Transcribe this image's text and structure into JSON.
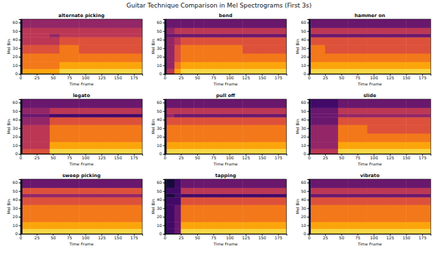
{
  "title": "Guitar Technique Comparison in Mel Spectrograms (First 3s)",
  "chart_data": [
    {
      "type": "heatmap",
      "title": "alternate picking",
      "x_label": "Time Frame",
      "y_label": "Mel Bin",
      "color": "inferno",
      "xlim": [
        0,
        188
      ],
      "ylim": [
        0,
        64
      ],
      "xticks": [
        0,
        25,
        50,
        75,
        100,
        125,
        150,
        175
      ],
      "yticks": [
        0,
        10,
        20,
        30,
        40,
        50,
        60
      ],
      "x_bins": [
        0,
        3,
        15,
        25,
        45,
        60,
        90,
        120,
        150,
        188
      ],
      "y_bins": [
        0,
        6,
        14,
        24,
        34,
        43,
        47,
        54,
        64
      ],
      "color_range": [
        0,
        10
      ],
      "cells": [
        [
          1,
          8,
          8,
          8,
          8,
          9,
          9,
          9,
          9
        ],
        [
          1,
          7,
          7,
          7,
          7,
          8,
          8,
          8,
          8
        ],
        [
          1,
          7,
          7,
          7,
          7,
          7,
          7,
          7,
          7
        ],
        [
          1,
          6,
          6,
          6,
          6,
          7,
          6,
          6,
          6
        ],
        [
          1,
          5,
          5,
          5,
          5,
          6,
          6,
          6,
          6
        ],
        [
          1,
          5,
          5,
          5,
          4,
          5,
          5,
          5,
          5
        ],
        [
          1,
          5,
          5,
          5,
          5,
          5,
          5,
          5,
          5
        ],
        [
          1,
          4,
          4,
          4,
          4,
          4,
          4,
          4,
          4
        ]
      ]
    },
    {
      "type": "heatmap",
      "title": "bend",
      "x_label": "Time Frame",
      "y_label": "Mel Bin",
      "color": "inferno",
      "xlim": [
        0,
        188
      ],
      "ylim": [
        0,
        64
      ],
      "xticks": [
        0,
        25,
        50,
        75,
        100,
        125,
        150,
        175
      ],
      "yticks": [
        0,
        10,
        20,
        30,
        40,
        50,
        60
      ],
      "x_bins": [
        0,
        3,
        15,
        25,
        45,
        60,
        90,
        120,
        150,
        188
      ],
      "y_bins": [
        0,
        6,
        14,
        24,
        34,
        43,
        47,
        54,
        64
      ],
      "color_range": [
        0,
        10
      ],
      "cells": [
        [
          1,
          5,
          8,
          9,
          9,
          9,
          9,
          9,
          9
        ],
        [
          1,
          4,
          7,
          8,
          8,
          8,
          8,
          8,
          8
        ],
        [
          1,
          4,
          6,
          7,
          7,
          7,
          7,
          7,
          7
        ],
        [
          1,
          4,
          6,
          7,
          7,
          7,
          7,
          6,
          6
        ],
        [
          1,
          4,
          5,
          6,
          6,
          6,
          6,
          6,
          6
        ],
        [
          1,
          3,
          3,
          3,
          3,
          3,
          3,
          3,
          3
        ],
        [
          1,
          4,
          5,
          5,
          5,
          5,
          5,
          5,
          5
        ],
        [
          1,
          3,
          3,
          3,
          3,
          3,
          3,
          3,
          3
        ]
      ]
    },
    {
      "type": "heatmap",
      "title": "hammer on",
      "x_label": "Time Frame",
      "y_label": "Mel Bin",
      "color": "inferno",
      "xlim": [
        0,
        188
      ],
      "ylim": [
        0,
        64
      ],
      "xticks": [
        0,
        25,
        50,
        75,
        100,
        125,
        150,
        175
      ],
      "yticks": [
        0,
        10,
        20,
        30,
        40,
        50,
        60
      ],
      "x_bins": [
        0,
        3,
        15,
        25,
        45,
        60,
        90,
        120,
        150,
        188
      ],
      "y_bins": [
        0,
        6,
        14,
        24,
        34,
        43,
        47,
        54,
        64
      ],
      "color_range": [
        0,
        10
      ],
      "cells": [
        [
          1,
          9,
          9,
          9,
          9,
          9,
          9,
          9,
          9
        ],
        [
          1,
          8,
          8,
          8,
          8,
          8,
          8,
          8,
          8
        ],
        [
          1,
          7,
          7,
          7,
          7,
          7,
          7,
          7,
          7
        ],
        [
          1,
          7,
          7,
          6,
          6,
          6,
          6,
          6,
          6
        ],
        [
          1,
          6,
          6,
          6,
          6,
          6,
          6,
          6,
          6
        ],
        [
          1,
          3,
          3,
          3,
          3,
          3,
          3,
          3,
          3
        ],
        [
          1,
          5,
          5,
          5,
          5,
          5,
          5,
          5,
          5
        ],
        [
          1,
          3,
          3,
          3,
          3,
          3,
          3,
          3,
          3
        ]
      ]
    },
    {
      "type": "heatmap",
      "title": "legato",
      "x_label": "Time Frame",
      "y_label": "Mel Bin",
      "color": "inferno",
      "xlim": [
        0,
        188
      ],
      "ylim": [
        0,
        64
      ],
      "xticks": [
        0,
        25,
        50,
        75,
        100,
        125,
        150,
        175
      ],
      "yticks": [
        0,
        10,
        20,
        30,
        40,
        50,
        60
      ],
      "x_bins": [
        0,
        3,
        15,
        25,
        45,
        60,
        90,
        120,
        150,
        188
      ],
      "y_bins": [
        0,
        6,
        14,
        24,
        34,
        43,
        47,
        54,
        64
      ],
      "color_range": [
        0,
        10
      ],
      "cells": [
        [
          1,
          6,
          6,
          6,
          9,
          9,
          9,
          9,
          9
        ],
        [
          1,
          5,
          5,
          5,
          8,
          8,
          8,
          8,
          8
        ],
        [
          1,
          5,
          5,
          5,
          7,
          7,
          7,
          7,
          7
        ],
        [
          1,
          5,
          5,
          5,
          7,
          7,
          7,
          7,
          7
        ],
        [
          1,
          4,
          4,
          4,
          6,
          6,
          6,
          6,
          6
        ],
        [
          1,
          3,
          3,
          3,
          2,
          2,
          2,
          2,
          2
        ],
        [
          1,
          4,
          4,
          4,
          5,
          5,
          5,
          5,
          5
        ],
        [
          1,
          3,
          3,
          3,
          3,
          3,
          3,
          3,
          3
        ]
      ]
    },
    {
      "type": "heatmap",
      "title": "pull off",
      "x_label": "Time Frame",
      "y_label": "Mel Bin",
      "color": "inferno",
      "xlim": [
        0,
        188
      ],
      "ylim": [
        0,
        64
      ],
      "xticks": [
        0,
        25,
        50,
        75,
        100,
        125,
        150,
        175
      ],
      "yticks": [
        0,
        10,
        20,
        30,
        40,
        50,
        60
      ],
      "x_bins": [
        0,
        3,
        15,
        25,
        45,
        60,
        90,
        120,
        150,
        188
      ],
      "y_bins": [
        0,
        6,
        14,
        24,
        34,
        43,
        47,
        54,
        64
      ],
      "color_range": [
        0,
        10
      ],
      "cells": [
        [
          1,
          9,
          9,
          9,
          9,
          9,
          9,
          9,
          9
        ],
        [
          1,
          8,
          8,
          8,
          8,
          8,
          8,
          8,
          8
        ],
        [
          1,
          7,
          7,
          7,
          7,
          7,
          7,
          7,
          7
        ],
        [
          1,
          7,
          7,
          7,
          7,
          7,
          7,
          7,
          7
        ],
        [
          1,
          6,
          6,
          6,
          6,
          6,
          6,
          6,
          6
        ],
        [
          1,
          4,
          3,
          3,
          3,
          3,
          3,
          3,
          3
        ],
        [
          1,
          5,
          5,
          5,
          5,
          5,
          5,
          5,
          5
        ],
        [
          1,
          3,
          3,
          3,
          3,
          3,
          3,
          3,
          3
        ]
      ]
    },
    {
      "type": "heatmap",
      "title": "slide",
      "x_label": "Time Frame",
      "y_label": "Mel Bin",
      "color": "inferno",
      "xlim": [
        0,
        188
      ],
      "ylim": [
        0,
        64
      ],
      "xticks": [
        0,
        25,
        50,
        75,
        100,
        125,
        150,
        175
      ],
      "yticks": [
        0,
        10,
        20,
        30,
        40,
        50,
        60
      ],
      "x_bins": [
        0,
        3,
        15,
        25,
        45,
        60,
        90,
        120,
        150,
        188
      ],
      "y_bins": [
        0,
        6,
        14,
        24,
        34,
        43,
        47,
        54,
        64
      ],
      "color_range": [
        0,
        10
      ],
      "cells": [
        [
          1,
          5,
          5,
          5,
          9,
          9,
          9,
          9,
          9
        ],
        [
          1,
          4,
          4,
          4,
          8,
          8,
          8,
          8,
          8
        ],
        [
          1,
          4,
          4,
          4,
          7,
          7,
          7,
          7,
          7
        ],
        [
          1,
          4,
          4,
          4,
          7,
          7,
          6,
          6,
          6
        ],
        [
          1,
          3,
          3,
          3,
          6,
          6,
          6,
          6,
          6
        ],
        [
          1,
          3,
          3,
          3,
          4,
          4,
          4,
          4,
          4
        ],
        [
          1,
          3,
          3,
          3,
          5,
          5,
          5,
          5,
          5
        ],
        [
          1,
          2,
          2,
          2,
          3,
          3,
          3,
          3,
          3
        ]
      ]
    },
    {
      "type": "heatmap",
      "title": "sweep picking",
      "x_label": "Time Frame",
      "y_label": "Mel Bin",
      "color": "inferno",
      "xlim": [
        0,
        188
      ],
      "ylim": [
        0,
        64
      ],
      "xticks": [
        0,
        25,
        50,
        75,
        100,
        125,
        150,
        175
      ],
      "yticks": [
        0,
        10,
        20,
        30,
        40,
        50,
        60
      ],
      "x_bins": [
        0,
        3,
        15,
        25,
        45,
        60,
        90,
        120,
        150,
        188
      ],
      "y_bins": [
        0,
        6,
        14,
        24,
        34,
        43,
        47,
        54,
        64
      ],
      "color_range": [
        0,
        10
      ],
      "cells": [
        [
          1,
          9,
          9,
          9,
          9,
          9,
          9,
          9,
          9
        ],
        [
          1,
          8,
          8,
          8,
          8,
          8,
          8,
          8,
          8
        ],
        [
          1,
          7,
          7,
          7,
          7,
          7,
          7,
          7,
          7
        ],
        [
          1,
          7,
          7,
          7,
          7,
          7,
          7,
          7,
          7
        ],
        [
          1,
          6,
          6,
          6,
          6,
          6,
          6,
          6,
          6
        ],
        [
          1,
          4,
          4,
          4,
          4,
          4,
          4,
          4,
          4
        ],
        [
          1,
          6,
          6,
          6,
          6,
          6,
          6,
          6,
          6
        ],
        [
          1,
          3,
          3,
          3,
          3,
          3,
          3,
          3,
          3
        ]
      ]
    },
    {
      "type": "heatmap",
      "title": "tapping",
      "x_label": "Time Frame",
      "y_label": "Mel Bin",
      "color": "inferno",
      "xlim": [
        0,
        188
      ],
      "ylim": [
        0,
        64
      ],
      "xticks": [
        0,
        25,
        50,
        75,
        100,
        125,
        150,
        175
      ],
      "yticks": [
        0,
        10,
        20,
        30,
        40,
        50,
        60
      ],
      "x_bins": [
        0,
        3,
        15,
        25,
        45,
        60,
        90,
        120,
        150,
        188
      ],
      "y_bins": [
        0,
        6,
        14,
        24,
        34,
        43,
        47,
        54,
        64
      ],
      "color_range": [
        0,
        10
      ],
      "cells": [
        [
          1,
          2,
          3,
          9,
          9,
          9,
          9,
          9,
          9
        ],
        [
          1,
          2,
          3,
          8,
          8,
          8,
          8,
          8,
          8
        ],
        [
          1,
          2,
          3,
          7,
          7,
          7,
          7,
          7,
          7
        ],
        [
          1,
          2,
          3,
          7,
          7,
          7,
          7,
          7,
          7
        ],
        [
          1,
          2,
          2,
          6,
          6,
          6,
          6,
          6,
          6
        ],
        [
          1,
          1,
          2,
          2,
          2,
          2,
          2,
          2,
          2
        ],
        [
          1,
          2,
          2,
          5,
          5,
          5,
          5,
          5,
          5
        ],
        [
          1,
          1,
          2,
          3,
          3,
          3,
          3,
          3,
          3
        ]
      ]
    },
    {
      "type": "heatmap",
      "title": "vibrato",
      "x_label": "Time Frame",
      "y_label": "Mel Bin",
      "color": "inferno",
      "xlim": [
        0,
        188
      ],
      "ylim": [
        0,
        64
      ],
      "xticks": [
        0,
        25,
        50,
        75,
        100,
        125,
        150,
        175
      ],
      "yticks": [
        0,
        10,
        20,
        30,
        40,
        50,
        60
      ],
      "x_bins": [
        0,
        3,
        15,
        25,
        45,
        60,
        90,
        120,
        150,
        188
      ],
      "y_bins": [
        0,
        6,
        14,
        24,
        34,
        43,
        47,
        54,
        64
      ],
      "color_range": [
        0,
        10
      ],
      "cells": [
        [
          1,
          9,
          9,
          9,
          9,
          9,
          9,
          9,
          9
        ],
        [
          1,
          8,
          8,
          8,
          8,
          8,
          8,
          8,
          8
        ],
        [
          1,
          7,
          7,
          7,
          7,
          7,
          7,
          7,
          7
        ],
        [
          1,
          7,
          7,
          7,
          7,
          7,
          7,
          7,
          7
        ],
        [
          1,
          6,
          6,
          6,
          6,
          6,
          6,
          6,
          6
        ],
        [
          1,
          3,
          3,
          3,
          3,
          3,
          3,
          3,
          3
        ],
        [
          1,
          5,
          5,
          5,
          5,
          5,
          5,
          5,
          5
        ],
        [
          1,
          3,
          3,
          3,
          3,
          3,
          3,
          3,
          3
        ]
      ]
    }
  ]
}
